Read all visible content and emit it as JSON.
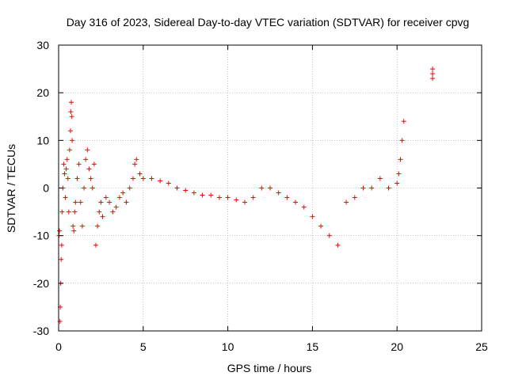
{
  "chart_data": {
    "type": "scatter",
    "title": "Day 316 of 2023, Sidereal Day-to-day VTEC variation (SDTVAR) for receiver cpvg",
    "xlabel": "GPS time / hours",
    "ylabel": "SDTVAR / TECUs",
    "xlim": [
      0,
      25
    ],
    "ylim": [
      -30,
      30
    ],
    "xticks": [
      "0",
      "5",
      "10",
      "15",
      "20",
      "25"
    ],
    "yticks": [
      "-30",
      "-20",
      "-10",
      "0",
      "10",
      "20",
      "30"
    ],
    "grid": true,
    "marker": "plus",
    "color": "#ff0000",
    "series": [
      {
        "name": "SDTVAR",
        "x": [
          0.02,
          0.05,
          0.08,
          0.1,
          0.12,
          0.15,
          0.18,
          0.2,
          0.25,
          0.3,
          0.35,
          0.4,
          0.45,
          0.5,
          0.55,
          0.6,
          0.65,
          0.7,
          0.72,
          0.75,
          0.78,
          0.8,
          0.85,
          0.9,
          0.95,
          1.0,
          1.1,
          1.2,
          1.3,
          1.4,
          1.5,
          1.6,
          1.7,
          1.8,
          1.9,
          2.0,
          2.1,
          2.2,
          2.3,
          2.4,
          2.5,
          2.6,
          2.8,
          3.0,
          3.2,
          3.4,
          3.6,
          3.8,
          4.0,
          4.2,
          4.4,
          4.5,
          4.6,
          4.8,
          5.0,
          5.5,
          6.0,
          6.5,
          7.0,
          7.5,
          8.0,
          8.5,
          9.0,
          9.5,
          10.0,
          10.5,
          11.0,
          11.5,
          12.0,
          12.5,
          13.0,
          13.5,
          14.0,
          14.5,
          15.0,
          15.5,
          16.0,
          16.5,
          17.0,
          17.5,
          18.0,
          18.5,
          19.0,
          19.5,
          20.0,
          20.1,
          20.2,
          20.3,
          20.4,
          22.1,
          22.1,
          22.1
        ],
        "y": [
          -10,
          -9,
          -28,
          -25,
          -20,
          -15,
          -12,
          -5,
          0,
          5,
          3,
          -2,
          4,
          6,
          2,
          -5,
          8,
          12,
          16,
          18,
          15,
          10,
          -8,
          -9,
          -5,
          -3,
          2,
          5,
          -3,
          -8,
          0,
          6,
          8,
          4,
          2,
          0,
          5,
          -12,
          -8,
          -5,
          -3,
          -6,
          -2,
          -3,
          -5,
          -4,
          -2,
          -1,
          -3,
          0,
          2,
          5,
          6,
          3,
          2,
          2,
          1.5,
          1,
          0,
          -0.5,
          -1,
          -1.5,
          -1.5,
          -2,
          -2,
          -2.5,
          -3,
          -2,
          0,
          0,
          -1,
          -2,
          -3,
          -4,
          -6,
          -8,
          -10,
          -12,
          -3,
          -2,
          0,
          0,
          2,
          0,
          1,
          3,
          6,
          10,
          14,
          24,
          25,
          23
        ]
      }
    ]
  }
}
